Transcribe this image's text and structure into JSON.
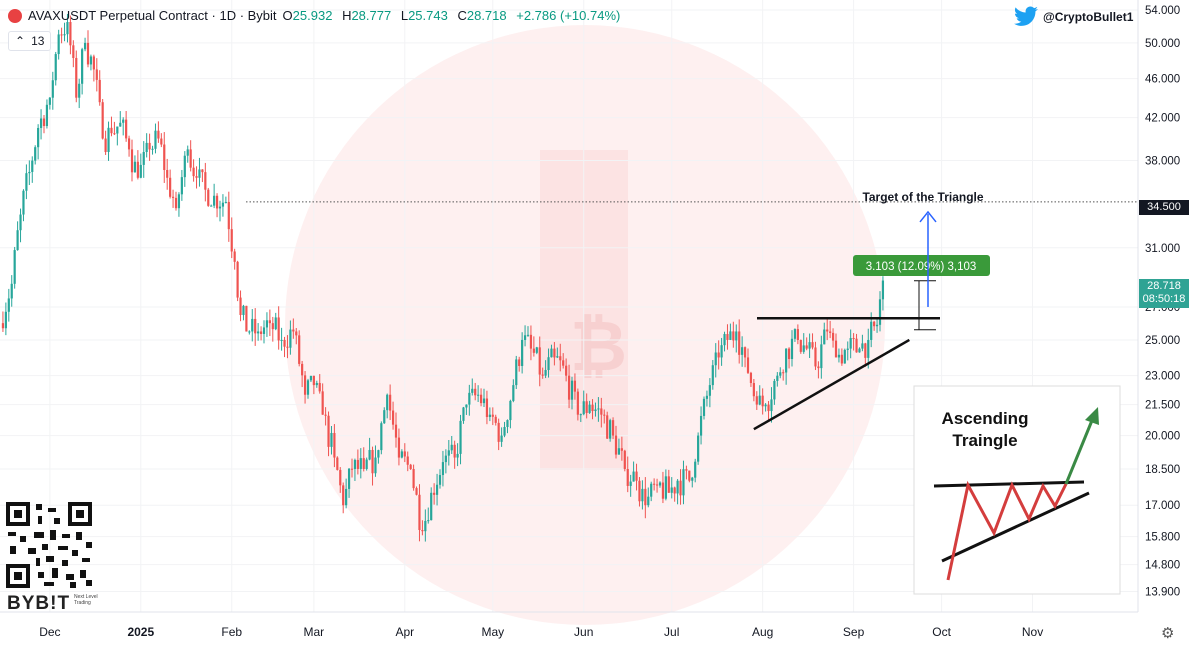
{
  "header": {
    "title": "AVAXUSDT Perpetual Contract · 1D · Bybit",
    "open_label": "O",
    "open": "25.932",
    "high_label": "H",
    "high": "28.777",
    "low_label": "L",
    "low": "25.743",
    "close_label": "C",
    "close": "28.718",
    "change": "+2.786 (+10.74%)"
  },
  "indicator_toggle": {
    "icon": "chevron-up-icon",
    "count": "13"
  },
  "watermark": {
    "handle": "@CryptoBullet1",
    "icon": "twitter-bird-icon"
  },
  "branding": {
    "logo_text": "BYB!T",
    "tagline": "Next Level Trading",
    "qr": "qr-code"
  },
  "price_tags": {
    "last_price": "28.718",
    "countdown": "08:50:18",
    "target_level": "34.500"
  },
  "colors": {
    "up": "#26a69a",
    "down": "#ef5350",
    "target_line": "#555555",
    "measure_bg": "#3a9a3a",
    "arrow_blue": "#2962ff"
  },
  "annotations": {
    "target_text": "Target of the Triangle",
    "measure_label": "3.103 (12.09%) 3,103"
  },
  "inset": {
    "title_line1": "Ascending",
    "title_line2": "Traingle"
  },
  "chart_data": {
    "type": "candlestick",
    "y_scale": "log",
    "ylim": [
      13.5,
      54.5
    ],
    "y_ticks": [
      "54.000",
      "50.000",
      "46.000",
      "42.000",
      "38.000",
      "34.500",
      "31.000",
      "28.718",
      "27.000",
      "25.000",
      "23.000",
      "21.500",
      "20.000",
      "18.500",
      "17.000",
      "15.800",
      "14.800",
      "13.900"
    ],
    "x_ticks": [
      "Dec",
      "2025",
      "Feb",
      "Mar",
      "Apr",
      "May",
      "Jun",
      "Jul",
      "Aug",
      "Sep",
      "Oct",
      "Nov"
    ],
    "x_tick_dates": [
      "2024-12-01",
      "2025-01-01",
      "2025-02-01",
      "2025-03-01",
      "2025-04-01",
      "2025-05-01",
      "2025-06-01",
      "2025-07-01",
      "2025-08-01",
      "2025-09-01",
      "2025-10-01",
      "2025-11-01"
    ],
    "x_range": [
      "2024-11-14",
      "2025-11-24"
    ],
    "target_level": 34.5,
    "triangle": {
      "resistance": 26.3,
      "support_from": [
        "2025-07-29",
        20.3
      ],
      "support_to": [
        "2025-09-20",
        25.0
      ]
    },
    "measure_move": {
      "from": 25.6,
      "to": 28.7,
      "value": "3.103 (12.09%)"
    },
    "close_series": [
      {
        "date": "2024-11-14",
        "close": 26.0
      },
      {
        "date": "2024-11-18",
        "close": 28.5
      },
      {
        "date": "2024-11-21",
        "close": 33.5
      },
      {
        "date": "2024-11-24",
        "close": 37.0
      },
      {
        "date": "2024-11-27",
        "close": 41.0
      },
      {
        "date": "2024-12-01",
        "close": 44.0
      },
      {
        "date": "2024-12-04",
        "close": 51.0
      },
      {
        "date": "2024-12-07",
        "close": 52.5
      },
      {
        "date": "2024-12-10",
        "close": 44.0
      },
      {
        "date": "2024-12-13",
        "close": 50.0
      },
      {
        "date": "2024-12-16",
        "close": 47.0
      },
      {
        "date": "2024-12-19",
        "close": 40.0
      },
      {
        "date": "2024-12-22",
        "close": 40.5
      },
      {
        "date": "2024-12-25",
        "close": 41.5
      },
      {
        "date": "2024-12-28",
        "close": 39.0
      },
      {
        "date": "2024-12-31",
        "close": 36.5
      },
      {
        "date": "2025-01-04",
        "close": 39.0
      },
      {
        "date": "2025-01-07",
        "close": 40.0
      },
      {
        "date": "2025-01-10",
        "close": 36.5
      },
      {
        "date": "2025-01-13",
        "close": 34.0
      },
      {
        "date": "2025-01-17",
        "close": 39.0
      },
      {
        "date": "2025-01-20",
        "close": 36.5
      },
      {
        "date": "2025-01-23",
        "close": 35.5
      },
      {
        "date": "2025-01-26",
        "close": 35.0
      },
      {
        "date": "2025-01-30",
        "close": 34.5
      },
      {
        "date": "2025-02-02",
        "close": 30.0
      },
      {
        "date": "2025-02-04",
        "close": 26.5
      },
      {
        "date": "2025-02-07",
        "close": 25.5
      },
      {
        "date": "2025-02-10",
        "close": 25.5
      },
      {
        "date": "2025-02-14",
        "close": 26.0
      },
      {
        "date": "2025-02-18",
        "close": 25.0
      },
      {
        "date": "2025-02-22",
        "close": 25.5
      },
      {
        "date": "2025-02-26",
        "close": 22.0
      },
      {
        "date": "2025-03-01",
        "close": 22.5
      },
      {
        "date": "2025-03-04",
        "close": 21.0
      },
      {
        "date": "2025-03-08",
        "close": 19.0
      },
      {
        "date": "2025-03-11",
        "close": 17.0
      },
      {
        "date": "2025-03-14",
        "close": 18.5
      },
      {
        "date": "2025-03-18",
        "close": 18.5
      },
      {
        "date": "2025-03-22",
        "close": 19.0
      },
      {
        "date": "2025-03-26",
        "close": 22.0
      },
      {
        "date": "2025-03-30",
        "close": 19.0
      },
      {
        "date": "2025-04-03",
        "close": 18.5
      },
      {
        "date": "2025-04-07",
        "close": 16.0
      },
      {
        "date": "2025-04-10",
        "close": 17.5
      },
      {
        "date": "2025-04-14",
        "close": 18.8
      },
      {
        "date": "2025-04-18",
        "close": 19.0
      },
      {
        "date": "2025-04-22",
        "close": 21.5
      },
      {
        "date": "2025-04-26",
        "close": 22.0
      },
      {
        "date": "2025-04-30",
        "close": 21.0
      },
      {
        "date": "2025-05-04",
        "close": 20.0
      },
      {
        "date": "2025-05-08",
        "close": 22.5
      },
      {
        "date": "2025-05-11",
        "close": 25.0
      },
      {
        "date": "2025-05-14",
        "close": 24.5
      },
      {
        "date": "2025-05-18",
        "close": 23.0
      },
      {
        "date": "2025-05-22",
        "close": 24.0
      },
      {
        "date": "2025-05-26",
        "close": 23.0
      },
      {
        "date": "2025-05-30",
        "close": 21.0
      },
      {
        "date": "2025-06-03",
        "close": 21.5
      },
      {
        "date": "2025-06-07",
        "close": 21.0
      },
      {
        "date": "2025-06-11",
        "close": 20.0
      },
      {
        "date": "2025-06-15",
        "close": 18.5
      },
      {
        "date": "2025-06-19",
        "close": 18.0
      },
      {
        "date": "2025-06-22",
        "close": 17.0
      },
      {
        "date": "2025-06-26",
        "close": 17.8
      },
      {
        "date": "2025-06-30",
        "close": 17.5
      },
      {
        "date": "2025-07-03",
        "close": 18.0
      },
      {
        "date": "2025-07-07",
        "close": 18.0
      },
      {
        "date": "2025-07-10",
        "close": 20.0
      },
      {
        "date": "2025-07-14",
        "close": 22.5
      },
      {
        "date": "2025-07-17",
        "close": 24.0
      },
      {
        "date": "2025-07-20",
        "close": 25.0
      },
      {
        "date": "2025-07-23",
        "close": 25.5
      },
      {
        "date": "2025-07-26",
        "close": 24.0
      },
      {
        "date": "2025-07-30",
        "close": 21.5
      },
      {
        "date": "2025-08-02",
        "close": 21.5
      },
      {
        "date": "2025-08-06",
        "close": 23.0
      },
      {
        "date": "2025-08-09",
        "close": 24.5
      },
      {
        "date": "2025-08-13",
        "close": 25.0
      },
      {
        "date": "2025-08-16",
        "close": 24.5
      },
      {
        "date": "2025-08-19",
        "close": 23.5
      },
      {
        "date": "2025-08-23",
        "close": 25.5
      },
      {
        "date": "2025-08-26",
        "close": 24.0
      },
      {
        "date": "2025-08-30",
        "close": 24.5
      },
      {
        "date": "2025-09-03",
        "close": 24.5
      },
      {
        "date": "2025-09-06",
        "close": 25.0
      },
      {
        "date": "2025-09-09",
        "close": 25.9
      },
      {
        "date": "2025-09-11",
        "close": 28.718
      }
    ]
  }
}
